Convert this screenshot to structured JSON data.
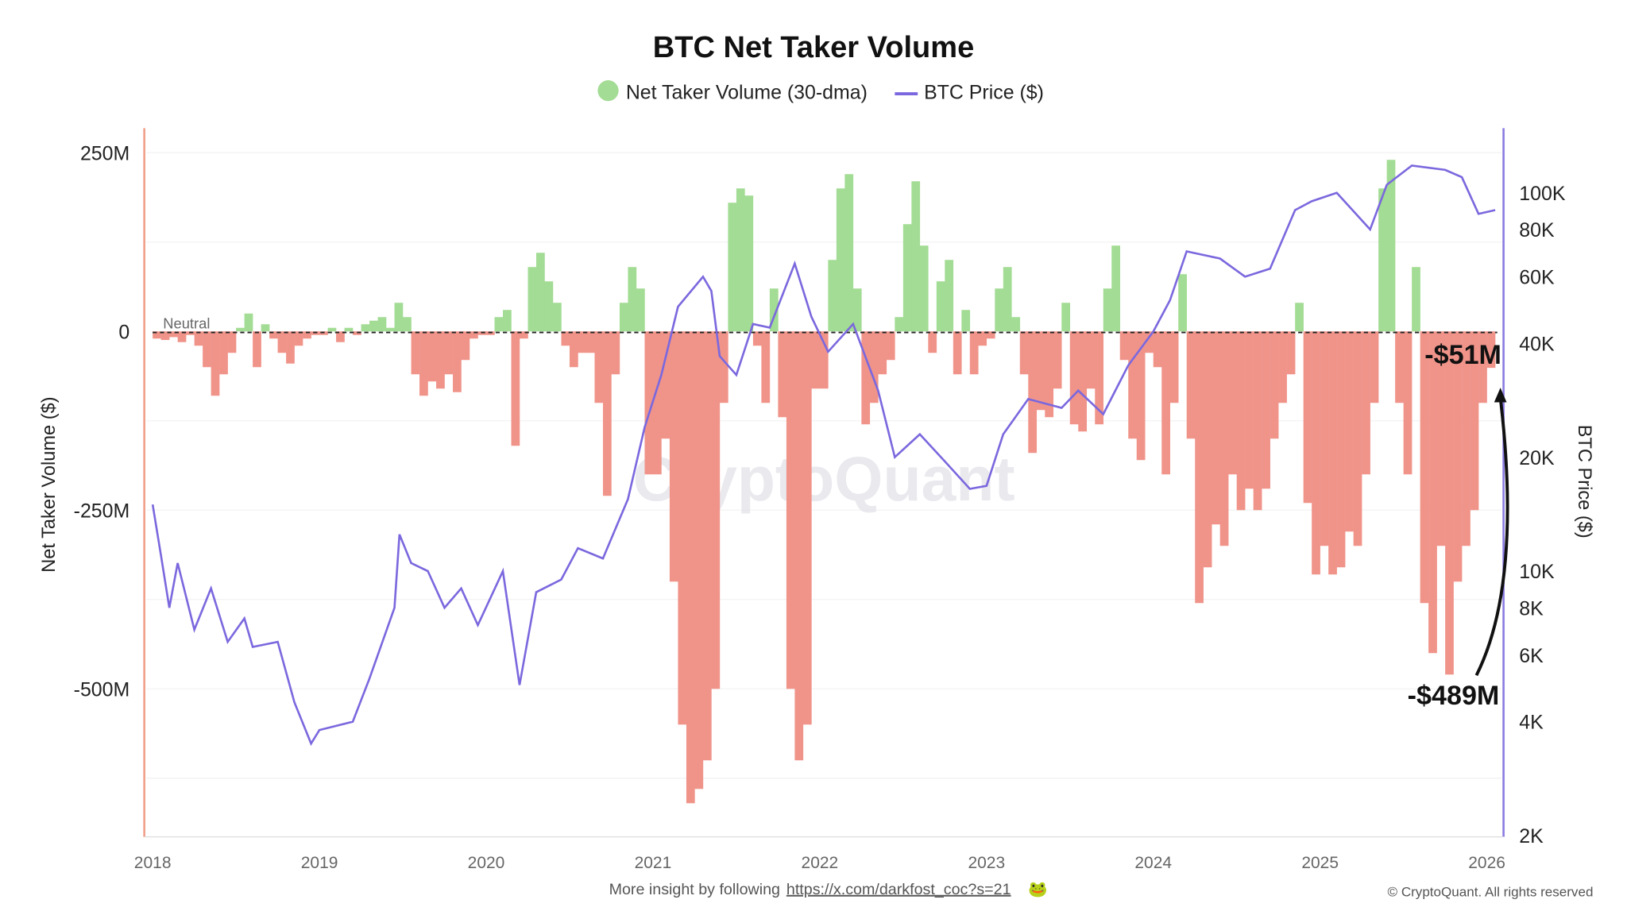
{
  "chart_data": {
    "type": "bar+line",
    "title": "BTC Net Taker Volume",
    "legend": {
      "position": "top",
      "entries": [
        "Net Taker Volume (30-dma)",
        "BTC Price ($)"
      ]
    },
    "ylabel": "Net Taker Volume ($)",
    "y2label": "BTC Price ($)",
    "ylim": [
      -707,
      284
    ],
    "y_ticks": [
      {
        "v": 250,
        "label": "250M"
      },
      {
        "v": 0,
        "label": "0"
      },
      {
        "v": -250,
        "label": "-250M"
      },
      {
        "v": -500,
        "label": "-500M"
      }
    ],
    "y2_scale": "log",
    "y2lim": [
      2000,
      148000
    ],
    "y2_ticks": [
      {
        "v": 100000,
        "label": "100K"
      },
      {
        "v": 80000,
        "label": "80K"
      },
      {
        "v": 60000,
        "label": "60K"
      },
      {
        "v": 40000,
        "label": "40K"
      },
      {
        "v": 20000,
        "label": "20K"
      },
      {
        "v": 10000,
        "label": "10K"
      },
      {
        "v": 8000,
        "label": "8K"
      },
      {
        "v": 6000,
        "label": "6K"
      },
      {
        "v": 4000,
        "label": "4K"
      },
      {
        "v": 2000,
        "label": "2K"
      }
    ],
    "xlim": [
      2018,
      2026.05
    ],
    "x_ticks": [
      "2018",
      "2019",
      "2020",
      "2021",
      "2022",
      "2023",
      "2024",
      "2025",
      "2026"
    ],
    "grid": true,
    "neutral_label": "Neutral",
    "colors": {
      "positive": "#a3dc94",
      "negative": "#f0948a",
      "price": "#7b68de",
      "left_axis": "#f0a08a",
      "right_axis": "#8a7be0"
    },
    "net_taker_volume_millions": {
      "x_start": 2018.0,
      "x_step": 0.05,
      "values": [
        -10,
        -12,
        -8,
        -15,
        -5,
        -20,
        -50,
        -90,
        -60,
        -30,
        5,
        25,
        -50,
        10,
        -10,
        -30,
        -45,
        -20,
        -10,
        -5,
        -5,
        5,
        -15,
        5,
        -5,
        10,
        15,
        20,
        5,
        40,
        20,
        -60,
        -90,
        -70,
        -80,
        -60,
        -85,
        -40,
        -10,
        -5,
        -5,
        20,
        30,
        -160,
        -10,
        90,
        110,
        70,
        40,
        -20,
        -50,
        -30,
        -30,
        -100,
        -230,
        -60,
        40,
        90,
        60,
        -200,
        -200,
        -150,
        -350,
        -550,
        -660,
        -640,
        -600,
        -500,
        -100,
        180,
        200,
        190,
        -20,
        -100,
        60,
        -120,
        -500,
        -600,
        -550,
        -80,
        -80,
        100,
        200,
        220,
        60,
        -130,
        -100,
        -60,
        -40,
        20,
        150,
        210,
        120,
        -30,
        70,
        100,
        -60,
        30,
        -60,
        -20,
        -10,
        60,
        90,
        20,
        -60,
        -170,
        -110,
        -120,
        -80,
        40,
        -130,
        -140,
        -80,
        -130,
        60,
        120,
        -40,
        -150,
        -180,
        -30,
        -50,
        -200,
        -100,
        80,
        -150,
        -380,
        -330,
        -270,
        -300,
        -200,
        -250,
        -220,
        -250,
        -220,
        -150,
        -100,
        -60,
        40,
        -240,
        -340,
        -300,
        -340,
        -330,
        -280,
        -300,
        -200,
        -100,
        200,
        240,
        -100,
        -200,
        90,
        -380,
        -450,
        -300,
        -480,
        -350,
        -300,
        -250,
        -100,
        -51
      ]
    },
    "btc_price_usd": [
      [
        2018.0,
        15000
      ],
      [
        2018.05,
        11000
      ],
      [
        2018.1,
        8000
      ],
      [
        2018.15,
        10500
      ],
      [
        2018.25,
        7000
      ],
      [
        2018.35,
        9000
      ],
      [
        2018.45,
        6500
      ],
      [
        2018.55,
        7500
      ],
      [
        2018.6,
        6300
      ],
      [
        2018.75,
        6500
      ],
      [
        2018.85,
        4500
      ],
      [
        2018.95,
        3500
      ],
      [
        2019.0,
        3800
      ],
      [
        2019.2,
        4000
      ],
      [
        2019.3,
        5200
      ],
      [
        2019.45,
        8000
      ],
      [
        2019.48,
        12500
      ],
      [
        2019.55,
        10500
      ],
      [
        2019.65,
        10000
      ],
      [
        2019.75,
        8000
      ],
      [
        2019.85,
        9000
      ],
      [
        2019.95,
        7200
      ],
      [
        2020.1,
        10000
      ],
      [
        2020.2,
        5000
      ],
      [
        2020.3,
        8800
      ],
      [
        2020.45,
        9500
      ],
      [
        2020.55,
        11500
      ],
      [
        2020.7,
        10800
      ],
      [
        2020.85,
        15500
      ],
      [
        2020.95,
        24000
      ],
      [
        2021.05,
        33000
      ],
      [
        2021.15,
        50000
      ],
      [
        2021.3,
        60000
      ],
      [
        2021.35,
        55000
      ],
      [
        2021.4,
        37000
      ],
      [
        2021.5,
        33000
      ],
      [
        2021.6,
        45000
      ],
      [
        2021.7,
        44000
      ],
      [
        2021.85,
        65000
      ],
      [
        2021.95,
        47000
      ],
      [
        2022.05,
        38000
      ],
      [
        2022.2,
        45000
      ],
      [
        2022.35,
        30000
      ],
      [
        2022.45,
        20000
      ],
      [
        2022.6,
        23000
      ],
      [
        2022.75,
        19500
      ],
      [
        2022.9,
        16500
      ],
      [
        2023.0,
        16800
      ],
      [
        2023.1,
        23000
      ],
      [
        2023.25,
        28500
      ],
      [
        2023.45,
        27000
      ],
      [
        2023.55,
        30000
      ],
      [
        2023.7,
        26000
      ],
      [
        2023.85,
        35000
      ],
      [
        2024.0,
        43000
      ],
      [
        2024.1,
        52000
      ],
      [
        2024.2,
        70000
      ],
      [
        2024.4,
        67000
      ],
      [
        2024.55,
        60000
      ],
      [
        2024.7,
        63000
      ],
      [
        2024.85,
        90000
      ],
      [
        2024.95,
        95000
      ],
      [
        2025.1,
        100000
      ],
      [
        2025.3,
        80000
      ],
      [
        2025.4,
        105000
      ],
      [
        2025.55,
        118000
      ],
      [
        2025.75,
        115000
      ],
      [
        2025.85,
        110000
      ],
      [
        2025.95,
        88000
      ],
      [
        2026.05,
        90000
      ]
    ],
    "annotations": [
      {
        "text": "-$51M",
        "x": 2026.0,
        "y": -51
      },
      {
        "text": "-$489M",
        "x": 2025.87,
        "y": -489
      }
    ],
    "watermark": "CryptoQuant"
  },
  "footer": {
    "insight_prefix": "More insight by following",
    "link": "https://x.com/darkfost_coc?s=21",
    "copyright": "© CryptoQuant. All rights reserved"
  }
}
